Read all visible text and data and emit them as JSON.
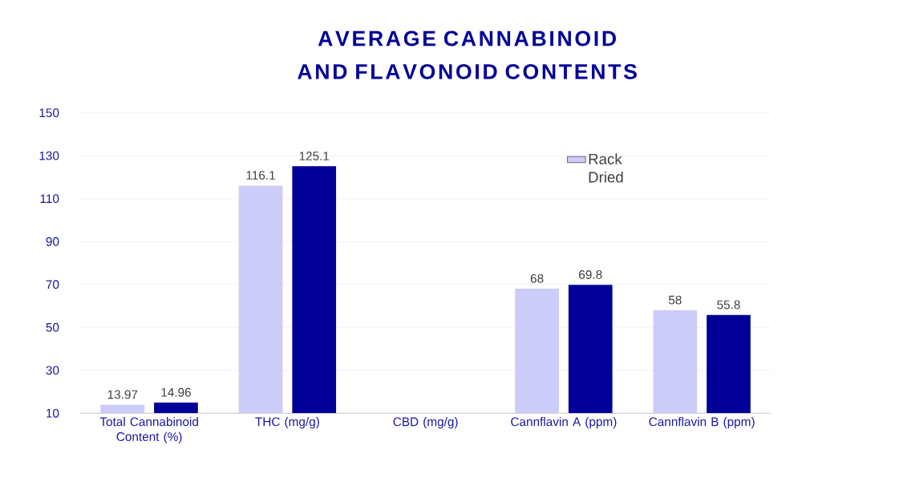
{
  "chart_data": {
    "type": "bar",
    "title": "AVERAGE CANNABINOID AND FLAVONOID CONTENTS",
    "categories": [
      "Total Cannabinoid Content (%)",
      "THC (mg/g)",
      "CBD (mg/g)",
      "Cannflavin A (ppm)",
      "Cannflavin B (ppm)"
    ],
    "series": [
      {
        "name": "Rack Dried",
        "color": "#ccccf8",
        "values": [
          13.97,
          116.1,
          null,
          68,
          58
        ],
        "value_labels": [
          "13.97",
          "116.1",
          null,
          "68",
          "58"
        ]
      },
      {
        "color": "#000099",
        "values": [
          14.96,
          125.1,
          null,
          69.8,
          55.8
        ],
        "value_labels": [
          "14.96",
          "125.1",
          null,
          "69.8",
          "55.8"
        ]
      }
    ],
    "ylim": [
      10,
      150
    ],
    "yticks": [
      10,
      30,
      50,
      70,
      90,
      110,
      130,
      150
    ],
    "grid": "y",
    "legend": "top right"
  }
}
